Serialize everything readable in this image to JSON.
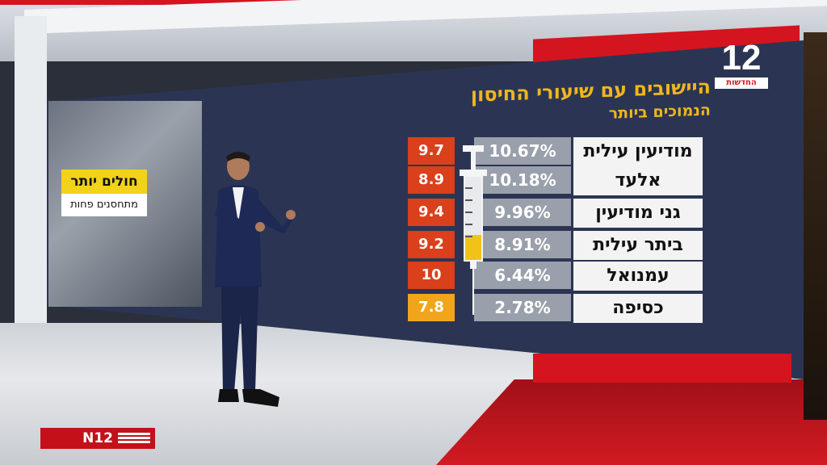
{
  "headline": {
    "title": "היישובים עם שיעורי החיסון",
    "subtitle": "הנמוכים ביותר"
  },
  "side_label": {
    "top": "חולים יותר",
    "bottom": "מתחסנים פחות"
  },
  "logo": {
    "number": "12",
    "text": "החדשות"
  },
  "rows": [
    {
      "name": "מודיעין עילית",
      "percent": "10.67%",
      "value": "9.7",
      "value_color": "#d9401b"
    },
    {
      "name": "אלעד",
      "percent": "10.18%",
      "value": "8.9",
      "value_color": "#d9401b"
    },
    {
      "name": "גני מודיעין",
      "percent": "9.96%",
      "value": "9.4",
      "value_color": "#d9401b"
    },
    {
      "name": "ביתר עילית",
      "percent": "8.91%",
      "value": "9.2",
      "value_color": "#d9401b"
    },
    {
      "name": "עמנואל",
      "percent": "6.44%",
      "value": "10",
      "value_color": "#d9401b"
    },
    {
      "name": "כסיפה",
      "percent": "2.78%",
      "value": "7.8",
      "value_color": "#f0a51c"
    }
  ],
  "bug": {
    "text": "N12"
  },
  "colors": {
    "brand_red": "#d4141e",
    "screen_bg": "#2b3553",
    "headline": "#f0b61c"
  },
  "syringe": {
    "fill_level": 0.3
  }
}
